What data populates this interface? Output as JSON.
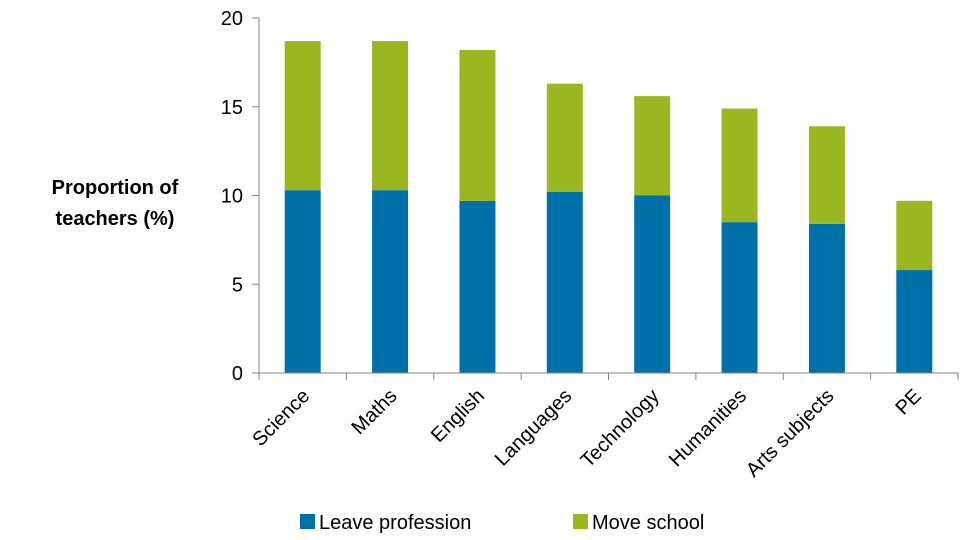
{
  "chart_data": {
    "type": "bar",
    "stacked": true,
    "title": "",
    "xlabel": "",
    "ylabel": [
      "Proportion of",
      "teachers (%)"
    ],
    "categories": [
      "Science",
      "Maths",
      "English",
      "Languages",
      "Technology",
      "Humanities",
      "Arts subjects",
      "PE"
    ],
    "series": [
      {
        "name": "Leave profession",
        "color": "#0071A8",
        "values": [
          10.3,
          10.3,
          9.7,
          10.2,
          10.0,
          8.5,
          8.4,
          5.8
        ]
      },
      {
        "name": "Move school",
        "color": "#9AB721",
        "values": [
          8.4,
          8.4,
          8.5,
          6.1,
          5.6,
          6.4,
          5.5,
          3.9
        ]
      }
    ],
    "ylim": [
      0,
      20
    ],
    "yticks": [
      0,
      5,
      10,
      15,
      20
    ],
    "grid": false,
    "legend_position": "bottom"
  }
}
